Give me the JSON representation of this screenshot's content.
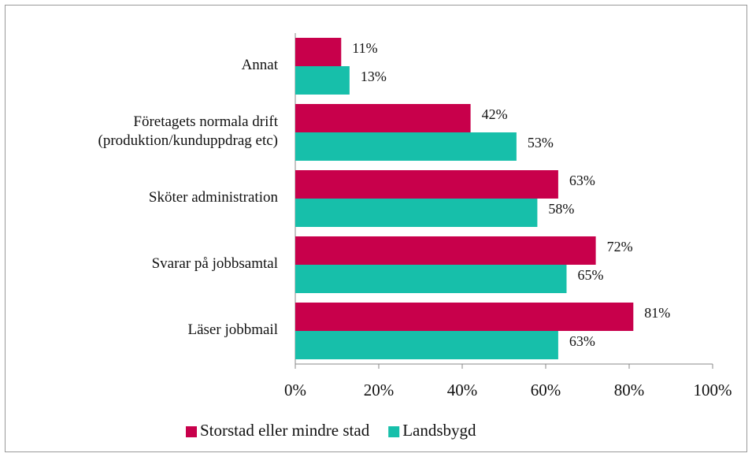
{
  "chart_data": {
    "type": "barh",
    "categories": [
      "Annat",
      "Företagets normala drift\n(produktion/kunduppdrag etc)",
      "Sköter administration",
      "Svarar på jobbsamtal",
      "Läser jobbmail"
    ],
    "series": [
      {
        "name": "Storstad eller mindre stad",
        "color": "#c8004b",
        "values": [
          11,
          42,
          63,
          72,
          81
        ],
        "value_labels": [
          "11%",
          "42%",
          "63%",
          "72%",
          "81%"
        ]
      },
      {
        "name": "Landsbygd",
        "color": "#17bfaa",
        "values": [
          13,
          53,
          58,
          65,
          63
        ],
        "value_labels": [
          "13%",
          "53%",
          "58%",
          "65%",
          "63%"
        ]
      }
    ],
    "xlim": [
      0,
      100
    ],
    "xticks": [
      {
        "value": 0,
        "label": "0%"
      },
      {
        "value": 20,
        "label": "20%"
      },
      {
        "value": 40,
        "label": "40%"
      },
      {
        "value": 60,
        "label": "60%"
      },
      {
        "value": 80,
        "label": "80%"
      },
      {
        "value": 100,
        "label": "100%"
      }
    ],
    "legend": "bottom"
  }
}
